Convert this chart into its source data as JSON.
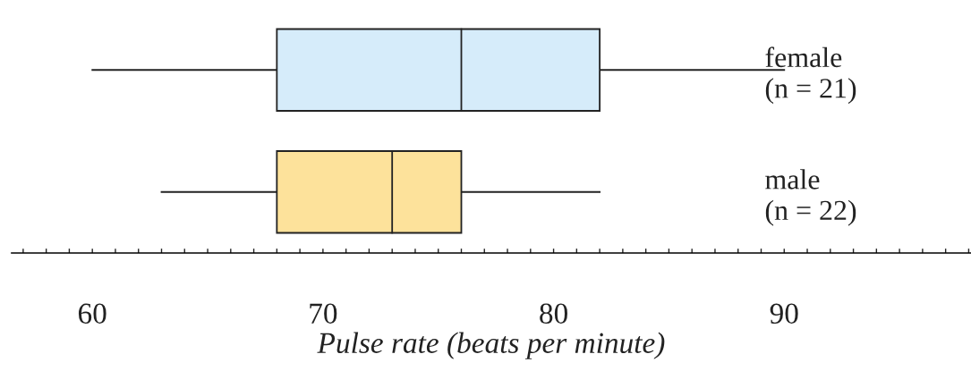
{
  "chart_data": {
    "type": "box",
    "orientation": "horizontal",
    "xlabel": "Pulse rate (beats per minute)",
    "categories": [
      "female\n(n = 21)",
      "male\n(n = 22)"
    ],
    "colors": [
      "#d6ecfa",
      "#fde29b"
    ],
    "boxes": [
      {
        "low": 60,
        "q1": 68,
        "median": 76,
        "q3": 82,
        "high": 90
      },
      {
        "low": 63,
        "q1": 68,
        "median": 73,
        "q3": 76,
        "high": 82
      }
    ],
    "xlim": [
      56.5,
      98.1
    ],
    "xticks": [
      {
        "value": 57,
        "label": null
      },
      {
        "value": 58,
        "label": null
      },
      {
        "value": 59,
        "label": null
      },
      60,
      {
        "value": 61,
        "label": null
      },
      {
        "value": 62,
        "label": null
      },
      {
        "value": 63,
        "label": null
      },
      {
        "value": 64,
        "label": null
      },
      {
        "value": 65,
        "label": null
      },
      {
        "value": 66,
        "label": null
      },
      {
        "value": 67,
        "label": null
      },
      {
        "value": 68,
        "label": null
      },
      {
        "value": 69,
        "label": null
      },
      70,
      {
        "value": 71,
        "label": null
      },
      {
        "value": 72,
        "label": null
      },
      {
        "value": 73,
        "label": null
      },
      {
        "value": 74,
        "label": null
      },
      {
        "value": 75,
        "label": null
      },
      {
        "value": 76,
        "label": null
      },
      {
        "value": 77,
        "label": null
      },
      {
        "value": 78,
        "label": null
      },
      {
        "value": 79,
        "label": null
      },
      80,
      {
        "value": 81,
        "label": null
      },
      {
        "value": 82,
        "label": null
      },
      {
        "value": 83,
        "label": null
      },
      {
        "value": 84,
        "label": null
      },
      {
        "value": 85,
        "label": null
      },
      {
        "value": 86,
        "label": null
      },
      {
        "value": 87,
        "label": null
      },
      {
        "value": 88,
        "label": null
      },
      {
        "value": 89,
        "label": null
      },
      90,
      {
        "value": 91,
        "label": null
      },
      {
        "value": 92,
        "label": null
      },
      {
        "value": 93,
        "label": null
      },
      {
        "value": 94,
        "label": null
      },
      {
        "value": 95,
        "label": null
      },
      {
        "value": 96,
        "label": null
      },
      {
        "value": 97,
        "label": null
      },
      {
        "value": 98,
        "label": null
      }
    ],
    "grid": false,
    "legend": false
  }
}
